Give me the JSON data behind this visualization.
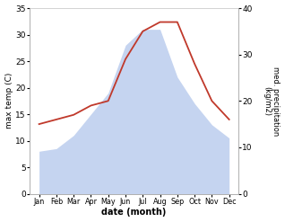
{
  "months": [
    "Jan",
    "Feb",
    "Mar",
    "Apr",
    "May",
    "Jun",
    "Jul",
    "Aug",
    "Sep",
    "Oct",
    "Nov",
    "Dec"
  ],
  "max_temp": [
    8,
    8.5,
    11,
    15,
    19,
    28,
    31,
    31,
    22,
    17,
    13,
    10.5
  ],
  "precipitation": [
    15,
    16,
    17,
    19,
    20,
    29,
    35,
    37,
    37,
    28,
    20,
    16
  ],
  "temp_fill_color": "#c5d4f0",
  "precip_color": "#c0392b",
  "left_ylabel": "max temp (C)",
  "right_ylabel": "med. precipitation\n(kg/m2)",
  "xlabel": "date (month)",
  "ylim_left": [
    0,
    35
  ],
  "ylim_right": [
    0,
    40
  ],
  "yticks_left": [
    0,
    5,
    10,
    15,
    20,
    25,
    30,
    35
  ],
  "yticks_right": [
    0,
    10,
    20,
    30,
    40
  ],
  "bg_color": "#ffffff",
  "spine_color": "#aaaaaa",
  "top_line_color": "#cccccc"
}
